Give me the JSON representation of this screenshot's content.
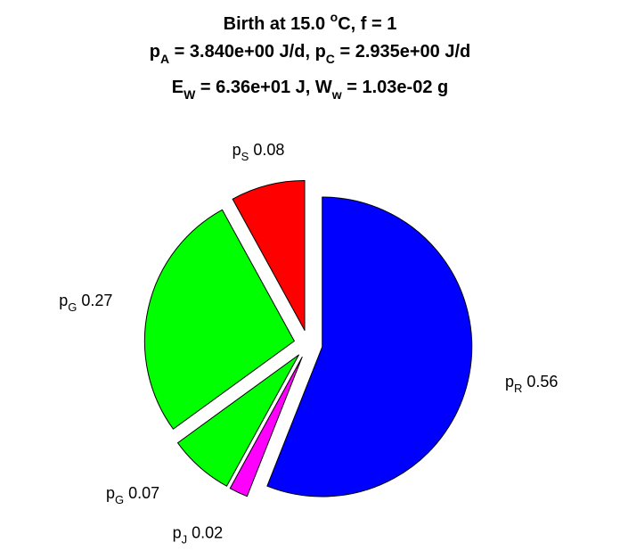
{
  "title": {
    "line1": {
      "prefix": "Birth at 15.0 ",
      "sup": "o",
      "suffix": "C, f = 1"
    },
    "line2": {
      "a_base": "p",
      "a_sub": "A",
      "a_value": " = 3.840e+00 J/d, ",
      "c_base": "p",
      "c_sub": "C",
      "c_value": " = 2.935e+00 J/d"
    },
    "line3": {
      "e_base": "E",
      "e_sub": "W",
      "e_value": " = 6.36e+01 J, ",
      "w_base": "W",
      "w_sub": "w",
      "w_value": " = 1.03e-02 g"
    }
  },
  "chart_data": {
    "type": "pie",
    "exploded": true,
    "start": "12 o'clock",
    "direction": "clockwise",
    "slices": [
      {
        "base": "p",
        "sub": "R",
        "value": 0.56,
        "label_value": "0.56",
        "color": "#0000ff"
      },
      {
        "base": "p",
        "sub": "J",
        "value": 0.02,
        "label_value": "0.02",
        "color": "#ff00ff"
      },
      {
        "base": "p",
        "sub": "G",
        "value": 0.07,
        "label_value": "0.07",
        "color": "#00ff00"
      },
      {
        "base": "p",
        "sub": "G",
        "value": 0.27,
        "label_value": "0.27",
        "color": "#00ff00"
      },
      {
        "base": "p",
        "sub": "S",
        "value": 0.08,
        "label_value": "0.08",
        "color": "#ff0000"
      }
    ]
  }
}
